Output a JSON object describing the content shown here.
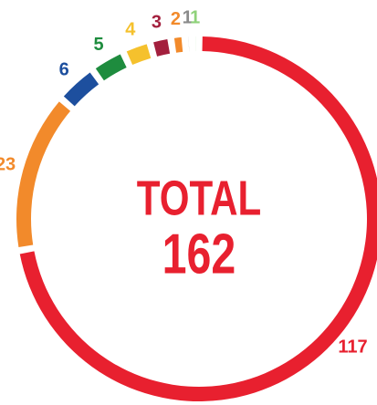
{
  "chart_data": {
    "type": "donut",
    "center_title": "TOTAL",
    "total": 162,
    "values": [
      117,
      23,
      6,
      5,
      4,
      3,
      2,
      1,
      1
    ],
    "colors": [
      "#e8202f",
      "#f28a2b",
      "#1d4f9e",
      "#1e8c3e",
      "#f5c12d",
      "#a31f3d",
      "#f28a2b",
      "#8b8b8b",
      "#8fd27a"
    ]
  }
}
